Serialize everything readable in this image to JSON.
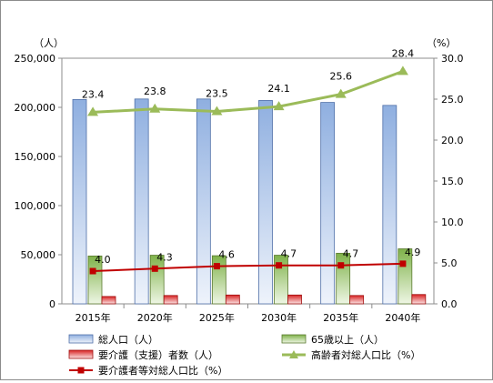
{
  "chart_data": {
    "type": "bar",
    "categories": [
      "2015年",
      "2020年",
      "2025年",
      "2030年",
      "2035年",
      "2040年"
    ],
    "left_axis": {
      "unit_label": "（人）",
      "range": [
        0,
        250000
      ],
      "ticks": [
        "0",
        "50,000",
        "100,000",
        "150,000",
        "200,000",
        "250,000"
      ],
      "tick_values": [
        0,
        50000,
        100000,
        150000,
        200000,
        250000
      ]
    },
    "right_axis": {
      "unit_label": "（%）",
      "range": [
        0,
        30
      ],
      "ticks": [
        "0.0",
        "5.0",
        "10.0",
        "15.0",
        "20.0",
        "25.0",
        "30.0"
      ],
      "tick_values": [
        0,
        5,
        10,
        15,
        20,
        25,
        30
      ]
    },
    "series": [
      {
        "name": "総人口（人）",
        "kind": "bar",
        "axis": "left",
        "color": "#95b3d7",
        "values": [
          208000,
          208500,
          208500,
          207000,
          205000,
          202000
        ]
      },
      {
        "name": "65歳以上（人）",
        "kind": "bar",
        "axis": "left",
        "color": "#9bbb59",
        "values": [
          48700,
          49500,
          49000,
          49500,
          51500,
          56000
        ]
      },
      {
        "name": "要介護（支援）者数（人）",
        "kind": "bar",
        "axis": "left",
        "color": "#e04040",
        "values": [
          7500,
          8500,
          9000,
          9000,
          8500,
          9500
        ]
      },
      {
        "name": "高齢者対総人口比（%）",
        "kind": "line",
        "axis": "right",
        "color": "#9bbb59",
        "values": [
          23.4,
          23.8,
          23.5,
          24.1,
          25.6,
          28.4
        ],
        "labels": [
          "23.4",
          "23.8",
          "23.5",
          "24.1",
          "25.6",
          "28.4"
        ]
      },
      {
        "name": "要介護者等対総人口比（%）",
        "kind": "line",
        "axis": "right",
        "color": "#c00000",
        "values": [
          4.0,
          4.3,
          4.6,
          4.7,
          4.7,
          4.9
        ],
        "labels": [
          "4.0",
          "4.3",
          "4.6",
          "4.7",
          "4.7",
          "4.9"
        ]
      }
    ],
    "legend_position": "bottom",
    "grid": false
  }
}
